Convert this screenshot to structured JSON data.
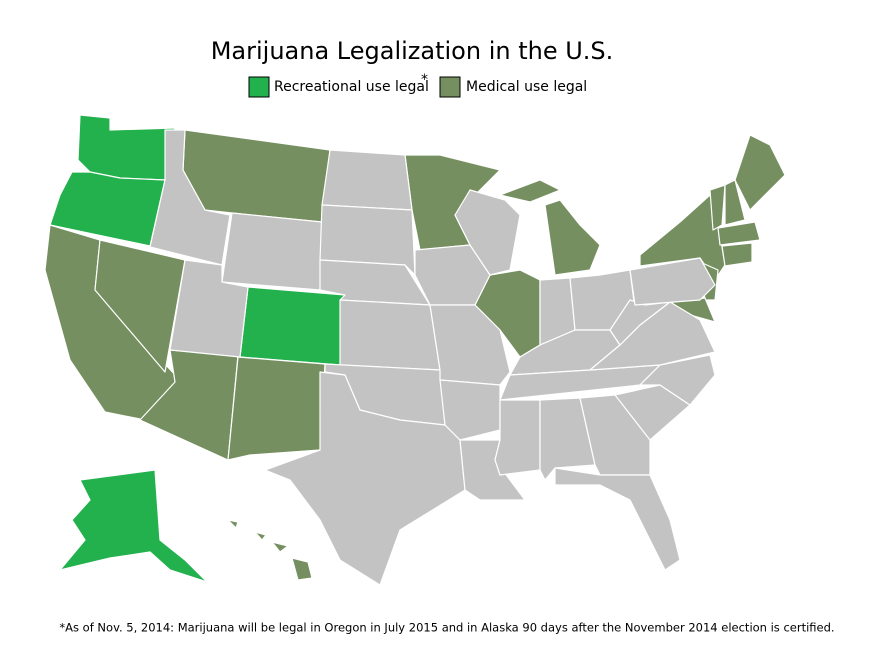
{
  "title": "Marijuana Legalization in the U.S.",
  "legend": [
    {
      "label": "Recreational use legal",
      "color": "#22b14c",
      "note_mark": "*"
    },
    {
      "label": "Medical use legal",
      "color": "#758f60"
    }
  ],
  "footnote": "*As of Nov. 5, 2014: Marijuana will be legal in Oregon in July 2015 and in Alaska 90 days after the November 2014 election is certified."
}
